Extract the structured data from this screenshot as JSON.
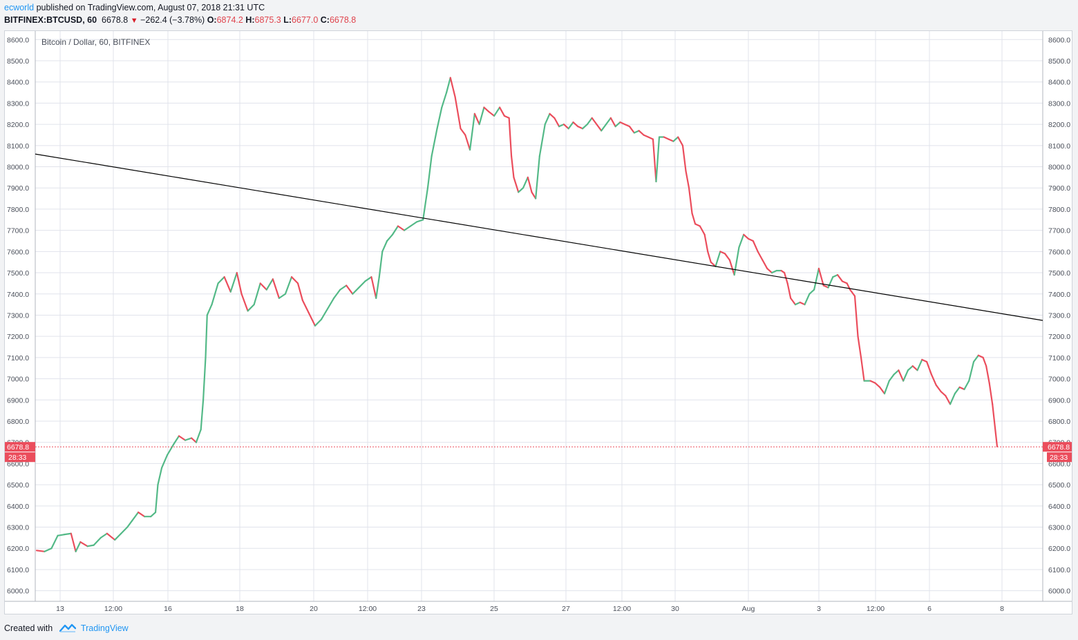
{
  "header": {
    "author": "ecworld",
    "published_text": "published on TradingView.com, August 07, 2018 21:31 UTC",
    "symbol": "BITFINEX:BTCUSD, 60",
    "last": "6678.8",
    "change": "−262.4 (−3.78%)",
    "o_label": "O:",
    "o_value": "6874.2",
    "h_label": "H:",
    "h_value": "6875.3",
    "l_label": "L:",
    "l_value": "6677.0",
    "c_label": "C:",
    "c_value": "6678.8"
  },
  "footer": {
    "created_with": "Created with",
    "brand": "TradingView"
  },
  "colors": {
    "up": "#53b987",
    "down": "#eb4d5c",
    "grid": "#e0e3eb",
    "trendline": "#000000",
    "price_line": "#eb4d5c"
  },
  "chart_data": {
    "type": "candlestick",
    "title": "Bitcoin / Dollar, 60, BITFINEX",
    "ylim": [
      5950,
      8640
    ],
    "y_ticks": [
      "6000.0",
      "6100.0",
      "6200.0",
      "6300.0",
      "6400.0",
      "6500.0",
      "6600.0",
      "6700.0",
      "6800.0",
      "6900.0",
      "7000.0",
      "7100.0",
      "7200.0",
      "7300.0",
      "7400.0",
      "7500.0",
      "7600.0",
      "7700.0",
      "7800.0",
      "7900.0",
      "8000.0",
      "8100.0",
      "8200.0",
      "8300.0",
      "8400.0",
      "8500.0",
      "8600.0"
    ],
    "x_ticks": [
      "13",
      "12:00",
      "16",
      "18",
      "20",
      "12:00",
      "23",
      "25",
      "27",
      "12:00",
      "30",
      "Aug",
      "3",
      "12:00",
      "6",
      "8"
    ],
    "last_price_label": "6678.8",
    "countdown_label": "28:33",
    "path_points": [
      [
        0,
        6190
      ],
      [
        10,
        6185
      ],
      [
        19,
        6200
      ],
      [
        27,
        6260
      ],
      [
        35,
        6265
      ],
      [
        44,
        6270
      ],
      [
        50,
        6185
      ],
      [
        56,
        6230
      ],
      [
        65,
        6210
      ],
      [
        73,
        6215
      ],
      [
        82,
        6250
      ],
      [
        90,
        6270
      ],
      [
        100,
        6240
      ],
      [
        108,
        6270
      ],
      [
        116,
        6300
      ],
      [
        122,
        6330
      ],
      [
        130,
        6370
      ],
      [
        138,
        6350
      ],
      [
        146,
        6350
      ],
      [
        152,
        6370
      ],
      [
        155,
        6500
      ],
      [
        160,
        6580
      ],
      [
        167,
        6640
      ],
      [
        175,
        6690
      ],
      [
        182,
        6730
      ],
      [
        190,
        6710
      ],
      [
        198,
        6720
      ],
      [
        204,
        6700
      ],
      [
        210,
        6760
      ],
      [
        213,
        6900
      ],
      [
        216,
        7100
      ],
      [
        218,
        7300
      ],
      [
        224,
        7350
      ],
      [
        232,
        7450
      ],
      [
        240,
        7480
      ],
      [
        248,
        7410
      ],
      [
        256,
        7500
      ],
      [
        262,
        7400
      ],
      [
        270,
        7320
      ],
      [
        278,
        7350
      ],
      [
        286,
        7450
      ],
      [
        294,
        7420
      ],
      [
        302,
        7470
      ],
      [
        310,
        7380
      ],
      [
        318,
        7400
      ],
      [
        326,
        7480
      ],
      [
        334,
        7450
      ],
      [
        340,
        7370
      ],
      [
        348,
        7310
      ],
      [
        356,
        7250
      ],
      [
        364,
        7280
      ],
      [
        372,
        7330
      ],
      [
        380,
        7380
      ],
      [
        388,
        7420
      ],
      [
        396,
        7440
      ],
      [
        404,
        7400
      ],
      [
        412,
        7430
      ],
      [
        420,
        7460
      ],
      [
        428,
        7480
      ],
      [
        434,
        7380
      ],
      [
        438,
        7480
      ],
      [
        442,
        7600
      ],
      [
        448,
        7650
      ],
      [
        455,
        7680
      ],
      [
        462,
        7720
      ],
      [
        470,
        7700
      ],
      [
        478,
        7720
      ],
      [
        486,
        7740
      ],
      [
        494,
        7750
      ],
      [
        500,
        7900
      ],
      [
        505,
        8050
      ],
      [
        512,
        8180
      ],
      [
        518,
        8280
      ],
      [
        524,
        8350
      ],
      [
        529,
        8420
      ],
      [
        535,
        8330
      ],
      [
        542,
        8180
      ],
      [
        548,
        8150
      ],
      [
        554,
        8080
      ],
      [
        560,
        8250
      ],
      [
        566,
        8200
      ],
      [
        572,
        8280
      ],
      [
        578,
        8260
      ],
      [
        585,
        8240
      ],
      [
        592,
        8280
      ],
      [
        598,
        8240
      ],
      [
        604,
        8230
      ],
      [
        607,
        8050
      ],
      [
        610,
        7950
      ],
      [
        616,
        7880
      ],
      [
        622,
        7900
      ],
      [
        628,
        7950
      ],
      [
        633,
        7880
      ],
      [
        638,
        7850
      ],
      [
        643,
        8050
      ],
      [
        650,
        8200
      ],
      [
        656,
        8250
      ],
      [
        662,
        8230
      ],
      [
        668,
        8190
      ],
      [
        674,
        8200
      ],
      [
        680,
        8180
      ],
      [
        686,
        8210
      ],
      [
        692,
        8190
      ],
      [
        698,
        8180
      ],
      [
        704,
        8200
      ],
      [
        710,
        8230
      ],
      [
        716,
        8200
      ],
      [
        722,
        8170
      ],
      [
        728,
        8200
      ],
      [
        734,
        8230
      ],
      [
        740,
        8190
      ],
      [
        746,
        8210
      ],
      [
        752,
        8200
      ],
      [
        758,
        8190
      ],
      [
        764,
        8160
      ],
      [
        770,
        8170
      ],
      [
        776,
        8150
      ],
      [
        782,
        8140
      ],
      [
        788,
        8130
      ],
      [
        792,
        7930
      ],
      [
        796,
        8140
      ],
      [
        802,
        8140
      ],
      [
        808,
        8130
      ],
      [
        814,
        8120
      ],
      [
        820,
        8140
      ],
      [
        826,
        8100
      ],
      [
        830,
        7980
      ],
      [
        834,
        7900
      ],
      [
        838,
        7780
      ],
      [
        842,
        7730
      ],
      [
        848,
        7720
      ],
      [
        854,
        7680
      ],
      [
        858,
        7600
      ],
      [
        862,
        7550
      ],
      [
        868,
        7530
      ],
      [
        874,
        7600
      ],
      [
        880,
        7590
      ],
      [
        886,
        7560
      ],
      [
        892,
        7490
      ],
      [
        898,
        7620
      ],
      [
        904,
        7680
      ],
      [
        910,
        7660
      ],
      [
        916,
        7650
      ],
      [
        922,
        7600
      ],
      [
        928,
        7560
      ],
      [
        934,
        7520
      ],
      [
        940,
        7500
      ],
      [
        946,
        7510
      ],
      [
        952,
        7510
      ],
      [
        956,
        7500
      ],
      [
        960,
        7450
      ],
      [
        964,
        7380
      ],
      [
        970,
        7350
      ],
      [
        976,
        7360
      ],
      [
        982,
        7350
      ],
      [
        988,
        7400
      ],
      [
        994,
        7420
      ],
      [
        1000,
        7520
      ],
      [
        1006,
        7440
      ],
      [
        1012,
        7430
      ],
      [
        1018,
        7480
      ],
      [
        1024,
        7490
      ],
      [
        1030,
        7460
      ],
      [
        1036,
        7450
      ],
      [
        1040,
        7420
      ],
      [
        1046,
        7390
      ],
      [
        1050,
        7200
      ],
      [
        1054,
        7100
      ],
      [
        1058,
        6990
      ],
      [
        1066,
        6990
      ],
      [
        1072,
        6980
      ],
      [
        1078,
        6960
      ],
      [
        1084,
        6930
      ],
      [
        1090,
        6990
      ],
      [
        1096,
        7020
      ],
      [
        1102,
        7040
      ],
      [
        1108,
        6990
      ],
      [
        1114,
        7040
      ],
      [
        1120,
        7060
      ],
      [
        1126,
        7040
      ],
      [
        1132,
        7090
      ],
      [
        1138,
        7080
      ],
      [
        1144,
        7020
      ],
      [
        1150,
        6970
      ],
      [
        1156,
        6940
      ],
      [
        1162,
        6920
      ],
      [
        1168,
        6880
      ],
      [
        1174,
        6930
      ],
      [
        1180,
        6960
      ],
      [
        1186,
        6950
      ],
      [
        1192,
        6990
      ],
      [
        1198,
        7080
      ],
      [
        1204,
        7110
      ],
      [
        1210,
        7100
      ],
      [
        1214,
        7060
      ],
      [
        1218,
        6980
      ],
      [
        1222,
        6880
      ],
      [
        1228,
        6680
      ]
    ],
    "trendline": [
      [
        0,
        8060
      ],
      [
        1228,
        7275
      ]
    ]
  }
}
